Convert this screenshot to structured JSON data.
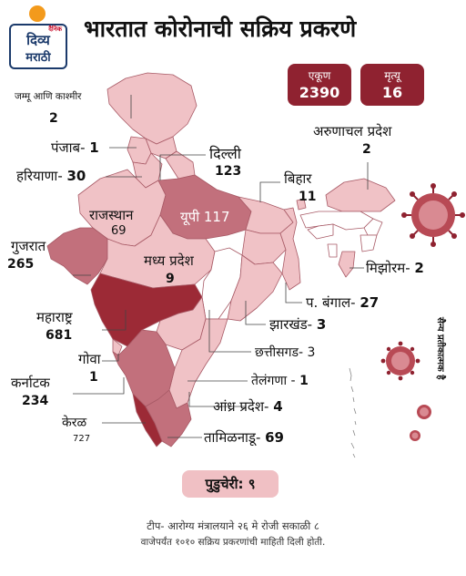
{
  "logo": {
    "tag": "दैनिक",
    "line1": "दिव्य",
    "line2": "मराठी",
    "sun_color": "#f39a1c",
    "text_color": "#1b3a6b"
  },
  "title": "भारतात कोरोनाची सक्रिय प्रकरणे",
  "totals": {
    "total": {
      "label": "एकूण",
      "value": "2390"
    },
    "deaths": {
      "label": "मृत्यू",
      "value": "16"
    },
    "color": "#8f2230"
  },
  "labels": {
    "jk": {
      "name": "जम्मू आणि काश्मीर",
      "value": "2"
    },
    "punjab": {
      "name": "पंजाब",
      "value": "1"
    },
    "haryana": {
      "name": "हरियाणा",
      "value": "30"
    },
    "delhi": {
      "name": "दिल्ली",
      "value": "123"
    },
    "rajasthan": {
      "name": "राजस्थान",
      "value": "69"
    },
    "up": {
      "name": "यूपी",
      "value": "117"
    },
    "gujarat": {
      "name": "गुजरात",
      "value": "265"
    },
    "mp": {
      "name": "मध्य प्रदेश",
      "value": "9"
    },
    "bihar": {
      "name": "बिहार",
      "value": "11"
    },
    "arunachal": {
      "name": "अरुणाचल प्रदेश",
      "value": "2"
    },
    "mizoram": {
      "name": "मिझोरम",
      "value": "2"
    },
    "wb": {
      "name": "प. बंगाल",
      "value": "27"
    },
    "jharkhand": {
      "name": "झारखंड",
      "value": "3"
    },
    "chhattisgarh": {
      "name": "छत्तीसगड",
      "value": "3"
    },
    "maharashtra": {
      "name": "महाराष्ट्र",
      "value": "681"
    },
    "goa": {
      "name": "गोवा",
      "value": "1"
    },
    "telangana": {
      "name": "तेलंगणा",
      "value": "1"
    },
    "karnataka": {
      "name": "कर्नाटक",
      "value": "234"
    },
    "andhra": {
      "name": "आंध्र प्रदेश",
      "value": "4"
    },
    "kerala": {
      "name": "केरळ",
      "value": "727"
    },
    "tamilnadu": {
      "name": "तामिळनाडू",
      "value": "69"
    }
  },
  "virus_caption": "सैन्य प्रतीकात्मक है",
  "puducherry": "पुडुचेरी: ९",
  "note": {
    "line1": "टीप- आरोग्य मंत्रालयाने २६ मे रोजी सकाळी ८",
    "line2": "वाजेपर्यंत १०१० सक्रिय प्रकरणांची माहिती दिली होती."
  },
  "colors": {
    "dark": "#9c2a36",
    "mid": "#c2707c",
    "light": "#f0c2c6",
    "white": "#ffffff",
    "outline": "#b07080"
  }
}
